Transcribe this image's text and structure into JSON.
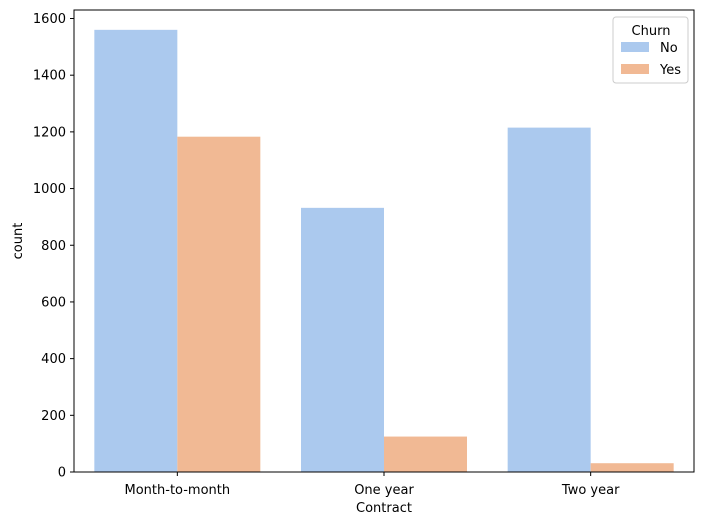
{
  "chart_data": {
    "type": "bar",
    "categories": [
      "Month-to-month",
      "One year",
      "Two year"
    ],
    "series": [
      {
        "name": "No",
        "values": [
          1560,
          932,
          1215
        ],
        "color": "#abc9ee"
      },
      {
        "name": "Yes",
        "values": [
          1183,
          125,
          31
        ],
        "color": "#f1b994"
      }
    ],
    "xlabel": "Contract",
    "ylabel": "count",
    "ylim": [
      0,
      1630
    ],
    "yticks": [
      0,
      200,
      400,
      600,
      800,
      1000,
      1200,
      1400,
      1600
    ],
    "legend": {
      "title": "Churn",
      "placement": "top-right"
    },
    "grid": false
  }
}
